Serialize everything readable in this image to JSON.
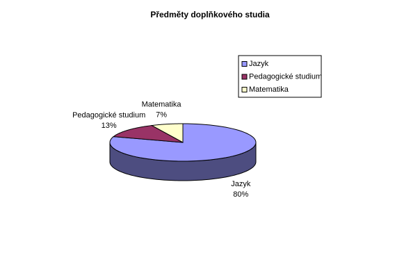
{
  "chart_data": {
    "type": "pie",
    "title": "Předměty doplňkového studia",
    "categories": [
      "Jazyk",
      "Pedagogické studium",
      "Matematika"
    ],
    "values": [
      80,
      13,
      7
    ],
    "value_labels": [
      "80%",
      "13%",
      "7%"
    ],
    "colors": [
      "#9999ff",
      "#993366",
      "#ffffcc"
    ],
    "legend": "right"
  }
}
